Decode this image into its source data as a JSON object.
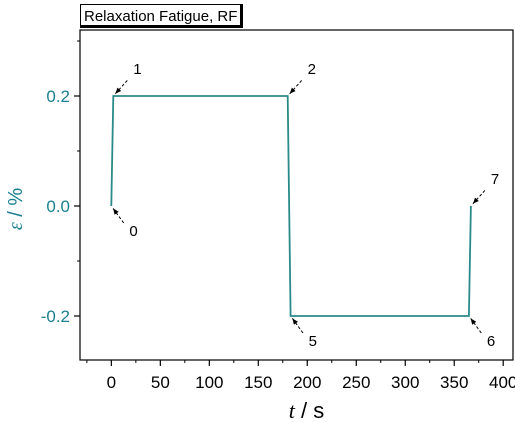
{
  "chart_data": {
    "type": "line",
    "title": "Relaxation Fatigue, RF",
    "xlabel_var": "t",
    "xlabel_unit": " / s",
    "ylabel_var": "ε",
    "ylabel_unit": " / %",
    "xlim": [
      -32,
      410
    ],
    "ylim": [
      -0.28,
      0.32
    ],
    "xticks": [
      0,
      50,
      100,
      150,
      200,
      250,
      300,
      350,
      400
    ],
    "yticks": [
      0.2,
      0.0,
      -0.2
    ],
    "ytick_labels": [
      "0.2",
      "0.0",
      "-0.2"
    ],
    "grid": false,
    "series": [
      {
        "x": [
          0,
          2,
          180,
          183,
          365,
          367
        ],
        "y": [
          0.0,
          0.2,
          0.2,
          -0.2,
          -0.2,
          0.0
        ]
      }
    ],
    "annotations": [
      {
        "label": "0",
        "x": 0,
        "y": 0.0
      },
      {
        "label": "1",
        "x": 2,
        "y": 0.2
      },
      {
        "label": "2",
        "x": 180,
        "y": 0.2
      },
      {
        "label": "5",
        "x": 183,
        "y": -0.2
      },
      {
        "label": "6",
        "x": 365,
        "y": -0.2
      },
      {
        "label": "7",
        "x": 367,
        "y": 0.0
      }
    ],
    "colors": {
      "series": "#2a8a8a",
      "axis": "#000000",
      "y_axis_label": "#1a7f8f",
      "annotation": "#000000"
    }
  }
}
